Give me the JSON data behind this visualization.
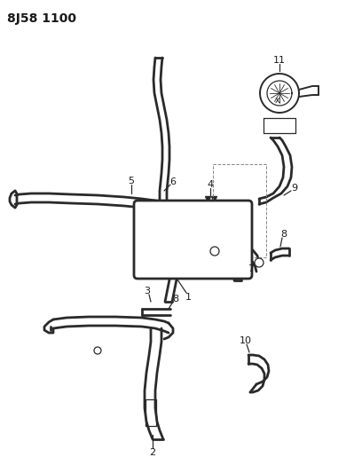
{
  "title": "8J58 1100",
  "bg_color": "#ffffff",
  "line_color": "#2a2a2a",
  "label_color": "#1a1a1a",
  "title_fontsize": 10,
  "label_fontsize": 8,
  "fig_width": 3.99,
  "fig_height": 5.33,
  "dpi": 100
}
